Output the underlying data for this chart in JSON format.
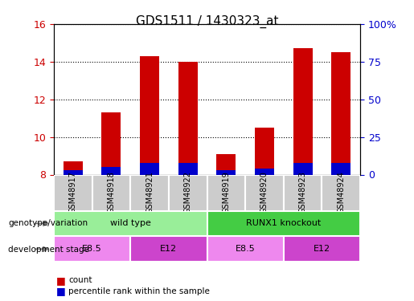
{
  "title": "GDS1511 / 1430323_at",
  "samples": [
    "GSM48917",
    "GSM48918",
    "GSM48921",
    "GSM48922",
    "GSM48919",
    "GSM48920",
    "GSM48923",
    "GSM48924"
  ],
  "count_values": [
    8.7,
    11.3,
    14.3,
    14.0,
    9.1,
    10.5,
    14.7,
    14.5
  ],
  "percentile_values": [
    3,
    5,
    8,
    8,
    3,
    4,
    8,
    8
  ],
  "ylim_left": [
    8,
    16
  ],
  "ylim_right": [
    0,
    100
  ],
  "yticks_left": [
    8,
    10,
    12,
    14,
    16
  ],
  "yticks_right": [
    0,
    25,
    50,
    75,
    100
  ],
  "count_color": "#cc0000",
  "percentile_color": "#0000cc",
  "bar_bottom": 8,
  "genotype_groups": [
    {
      "label": "wild type",
      "start": 0,
      "end": 4,
      "color": "#99ee99"
    },
    {
      "label": "RUNX1 knockout",
      "start": 4,
      "end": 8,
      "color": "#44cc44"
    }
  ],
  "stage_groups": [
    {
      "label": "E8.5",
      "start": 0,
      "end": 2,
      "color": "#ee88ee"
    },
    {
      "label": "E12",
      "start": 2,
      "end": 4,
      "color": "#cc44cc"
    },
    {
      "label": "E8.5",
      "start": 4,
      "end": 6,
      "color": "#ee88ee"
    },
    {
      "label": "E12",
      "start": 6,
      "end": 8,
      "color": "#cc44cc"
    }
  ],
  "genotype_label": "genotype/variation",
  "stage_label": "development stage",
  "legend_count": "count",
  "legend_percentile": "percentile rank within the sample",
  "tick_color_left": "#cc0000",
  "tick_color_right": "#0000cc",
  "bg_color": "#ffffff",
  "plot_bg": "#ffffff"
}
